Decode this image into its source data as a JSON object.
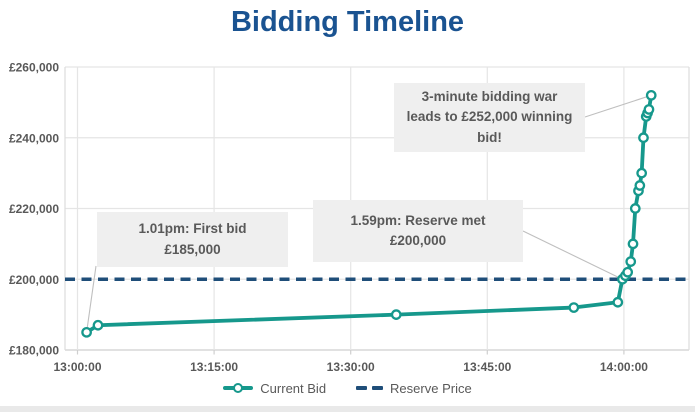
{
  "chart_data": {
    "type": "line",
    "title": "Bidding Timeline",
    "xlabel": "",
    "ylabel": "",
    "ylim": [
      180000,
      260000
    ],
    "xlim_minutes_after_13_00": [
      -1.4,
      67.2
    ],
    "grid": true,
    "legend_position": "bottom",
    "y_ticks": [
      {
        "label": "£180,000",
        "value": 180000
      },
      {
        "label": "£200,000",
        "value": 200000
      },
      {
        "label": "£220,000",
        "value": 220000
      },
      {
        "label": "£240,000",
        "value": 240000
      },
      {
        "label": "£260,000",
        "value": 260000
      }
    ],
    "x_ticks": [
      {
        "label": "13:00:00",
        "minutes": 0
      },
      {
        "label": "13:15:00",
        "minutes": 15
      },
      {
        "label": "13:30:00",
        "minutes": 30
      },
      {
        "label": "13:45:00",
        "minutes": 45
      },
      {
        "label": "14:00:00",
        "minutes": 60
      }
    ],
    "series": [
      {
        "name": "Current Bid",
        "type": "line",
        "color": "#16988C",
        "points": [
          [
            "13:01:00",
            185000
          ],
          [
            "13:02:15",
            187000
          ],
          [
            "13:35:00",
            190000
          ],
          [
            "13:54:30",
            192000
          ],
          [
            "13:59:20",
            193500
          ],
          [
            "13:59:50",
            200000
          ],
          [
            "14:00:10",
            201000
          ],
          [
            "14:00:25",
            202000
          ],
          [
            "14:00:45",
            205000
          ],
          [
            "14:01:00",
            210000
          ],
          [
            "14:01:15",
            220000
          ],
          [
            "14:01:36",
            225000
          ],
          [
            "14:01:45",
            226500
          ],
          [
            "14:01:57",
            230000
          ],
          [
            "14:02:09",
            240000
          ],
          [
            "14:02:27",
            246000
          ],
          [
            "14:02:36",
            247000
          ],
          [
            "14:02:45",
            248000
          ],
          [
            "14:03:00",
            252000
          ]
        ]
      },
      {
        "name": "Reserve Price",
        "type": "hline",
        "color": "#1F4E79",
        "value": 200000
      }
    ],
    "annotations": [
      {
        "text": "1.01pm: First bid\n£185,000",
        "anchor_time": "13:01:00",
        "anchor_value": 185000
      },
      {
        "text": "1.59pm: Reserve met\n£200,000",
        "anchor_time": "13:59:50",
        "anchor_value": 200000
      },
      {
        "text": "3-minute bidding war\nleads to £252,000 winning\nbid!",
        "anchor_time": "14:03:00",
        "anchor_value": 252000
      }
    ]
  },
  "colors": {
    "title": "#1A5391",
    "current_bid": "#16988C",
    "reserve_price": "#1F4E79",
    "axis_text": "#595959",
    "gridline": "#E5E5E5",
    "axis_line": "#CFCFCF",
    "annotation_bg": "#EFEFEF",
    "annotation_text": "#595959",
    "leader_line": "#BFBFBF"
  }
}
